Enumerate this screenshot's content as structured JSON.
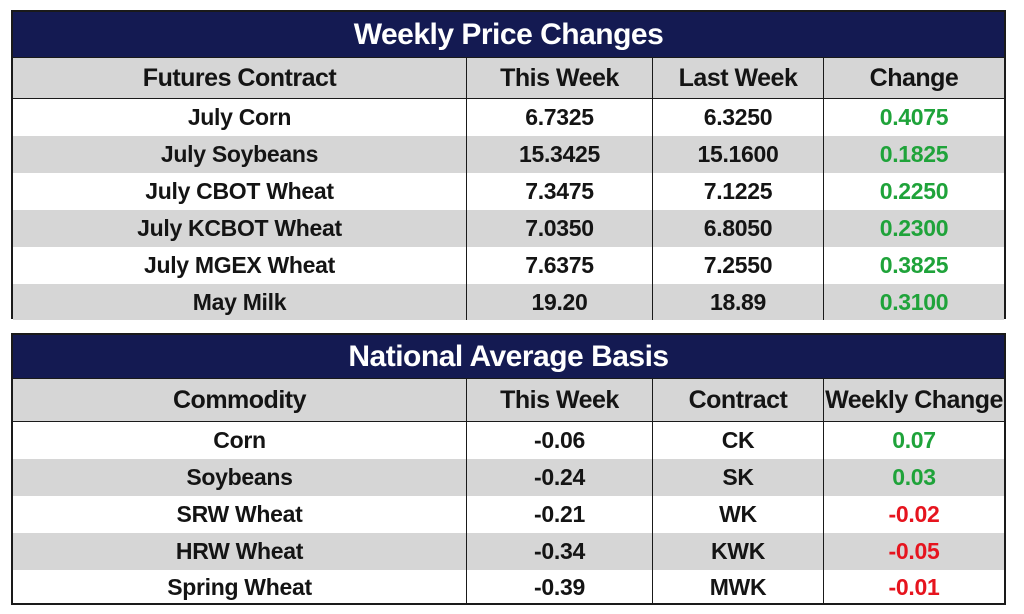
{
  "futures": {
    "title": "Weekly Price Changes",
    "headers": [
      "Futures Contract",
      "This Week",
      "Last Week",
      "Change"
    ],
    "rows": [
      {
        "contract": "July Corn",
        "this_week": "6.7325",
        "last_week": "6.3250",
        "change": "0.4075"
      },
      {
        "contract": "July Soybeans",
        "this_week": "15.3425",
        "last_week": "15.1600",
        "change": "0.1825"
      },
      {
        "contract": "July CBOT Wheat",
        "this_week": "7.3475",
        "last_week": "7.1225",
        "change": "0.2250"
      },
      {
        "contract": "July KCBOT Wheat",
        "this_week": "7.0350",
        "last_week": "6.8050",
        "change": "0.2300"
      },
      {
        "contract": "July MGEX Wheat",
        "this_week": "7.6375",
        "last_week": "7.2550",
        "change": "0.3825"
      },
      {
        "contract": "May Milk",
        "this_week": "19.20",
        "last_week": "18.89",
        "change": "0.3100"
      }
    ]
  },
  "basis": {
    "title": "National Average Basis",
    "headers": [
      "Commodity",
      "This Week",
      "Contract",
      "Weekly Change"
    ],
    "rows": [
      {
        "commodity": "Corn",
        "this_week": "-0.06",
        "contract": "CK",
        "weekly_change": "0.07"
      },
      {
        "commodity": "Soybeans",
        "this_week": "-0.24",
        "contract": "SK",
        "weekly_change": "0.03"
      },
      {
        "commodity": "SRW Wheat",
        "this_week": "-0.21",
        "contract": "WK",
        "weekly_change": "-0.02"
      },
      {
        "commodity": "HRW Wheat",
        "this_week": "-0.34",
        "contract": "KWK",
        "weekly_change": "-0.05"
      },
      {
        "commodity": "Spring Wheat",
        "this_week": "-0.39",
        "contract": "MWK",
        "weekly_change": "-0.01"
      }
    ]
  },
  "colors": {
    "title_bg": "#141a52",
    "shade": "#d6d6d6",
    "positive": "#1fa33a",
    "negative": "#e6141e"
  }
}
